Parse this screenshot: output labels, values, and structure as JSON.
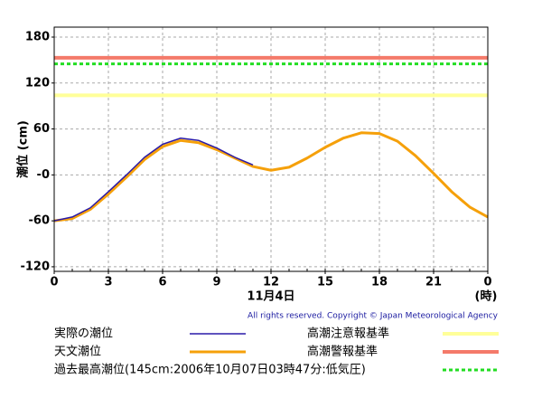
{
  "chart_data": {
    "type": "line",
    "ylabel": "潮位 (cm)",
    "xlabel": "11月4日",
    "xunit": "(時)",
    "credit": "All rights reserved. Copyright © Japan Meteorological Agency",
    "xlim": [
      0,
      24
    ],
    "xticks": [
      0,
      3,
      6,
      9,
      12,
      15,
      18,
      21,
      {
        "value": 24,
        "label": "0"
      }
    ],
    "ylim": [
      -126,
      193
    ],
    "yticks": [
      -120,
      -60,
      {
        "value": 0,
        "label": "-0"
      },
      60,
      120,
      180
    ],
    "grid": true,
    "x": [
      0,
      1,
      2,
      3,
      4,
      5,
      6,
      7,
      8,
      9,
      10,
      11,
      12,
      13,
      14,
      15,
      16,
      17,
      18,
      19,
      20,
      21,
      22,
      23,
      24
    ],
    "series": [
      {
        "name": "実際の潮位",
        "color": "#2a1aa8",
        "values": [
          -60,
          -55,
          -43,
          -22,
          0,
          23,
          40,
          48,
          45,
          35,
          23,
          13,
          null,
          null,
          null,
          null,
          null,
          null,
          null,
          null,
          null,
          null,
          null,
          null,
          null
        ]
      },
      {
        "name": "天文潮位",
        "color": "#f5a00a",
        "values": [
          -60,
          -57,
          -45,
          -25,
          -3,
          20,
          37,
          45,
          42,
          33,
          22,
          11,
          6,
          10,
          22,
          36,
          48,
          55,
          54,
          44,
          25,
          2,
          -22,
          -42,
          -55
        ]
      }
    ],
    "hlines": [
      {
        "name": "高潮注意報基準",
        "value": 104,
        "color": "#ffff99",
        "style": "solid"
      },
      {
        "name": "高潮警報基準",
        "value": 153,
        "color": "#f47a6a",
        "style": "solid"
      },
      {
        "name": "過去最高潮位(145cm:2006年10月07日03時47分:低気圧)",
        "value": 145,
        "color": "#22dd22",
        "style": "dotted"
      }
    ]
  }
}
